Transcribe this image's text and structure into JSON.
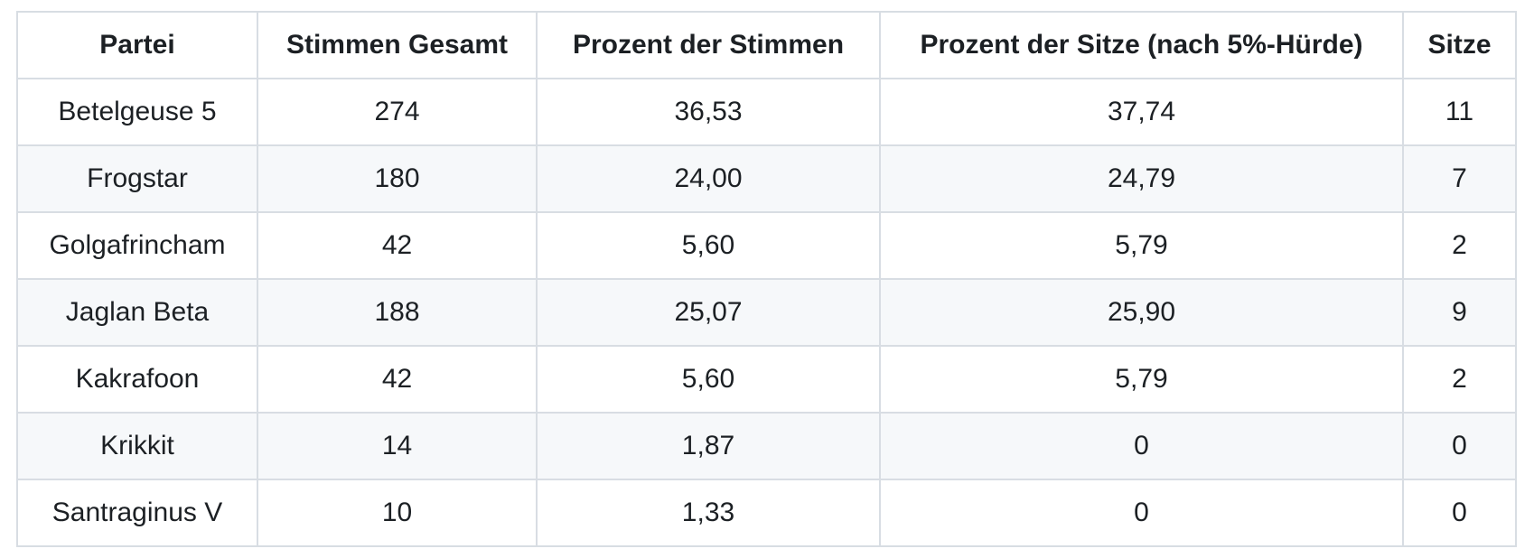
{
  "chart_data": {
    "type": "table",
    "columns": [
      "Partei",
      "Stimmen Gesamt",
      "Prozent der Stimmen",
      "Prozent der Sitze (nach 5%-Hürde)",
      "Sitze"
    ],
    "rows": [
      [
        "Betelgeuse 5",
        "274",
        "36,53",
        "37,74",
        "11"
      ],
      [
        "Frogstar",
        "180",
        "24,00",
        "24,79",
        "7"
      ],
      [
        "Golgafrincham",
        "42",
        "5,60",
        "5,79",
        "2"
      ],
      [
        "Jaglan Beta",
        "188",
        "25,07",
        "25,90",
        "9"
      ],
      [
        "Kakrafoon",
        "42",
        "5,60",
        "5,79",
        "2"
      ],
      [
        "Krikkit",
        "14",
        "1,87",
        "0",
        "0"
      ],
      [
        "Santraginus V",
        "10",
        "1,33",
        "0",
        "0"
      ]
    ],
    "layout_hints": {
      "text_align": "center",
      "header_bold": true,
      "zebra_striping": "even data rows shaded",
      "decimal_separator": "comma"
    }
  },
  "colors": {
    "text": "#1c2024",
    "border": "#d8dde3",
    "stripe": "#f6f8fa",
    "background": "#ffffff"
  }
}
